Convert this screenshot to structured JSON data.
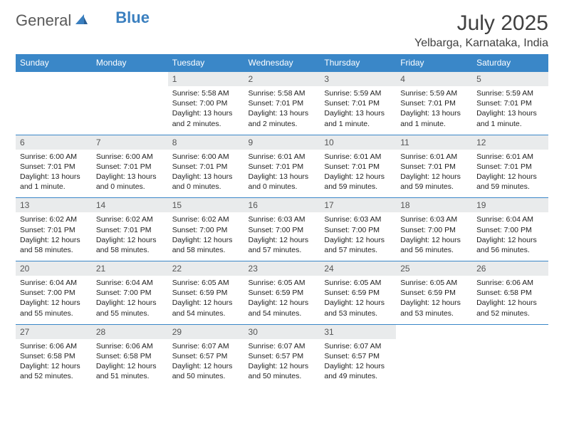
{
  "logo": {
    "text1": "General",
    "text2": "Blue"
  },
  "title": "July 2025",
  "location": "Yelbarga, Karnataka, India",
  "colors": {
    "header_bg": "#3a87c8",
    "header_text": "#ffffff",
    "daynum_bg": "#e9ebec",
    "row_border": "#3a87c8",
    "logo_accent": "#3a7fbf"
  },
  "dayNames": [
    "Sunday",
    "Monday",
    "Tuesday",
    "Wednesday",
    "Thursday",
    "Friday",
    "Saturday"
  ],
  "weeks": [
    [
      {
        "n": "",
        "sr": "",
        "ss": "",
        "dl": ""
      },
      {
        "n": "",
        "sr": "",
        "ss": "",
        "dl": ""
      },
      {
        "n": "1",
        "sr": "Sunrise: 5:58 AM",
        "ss": "Sunset: 7:00 PM",
        "dl": "Daylight: 13 hours and 2 minutes."
      },
      {
        "n": "2",
        "sr": "Sunrise: 5:58 AM",
        "ss": "Sunset: 7:01 PM",
        "dl": "Daylight: 13 hours and 2 minutes."
      },
      {
        "n": "3",
        "sr": "Sunrise: 5:59 AM",
        "ss": "Sunset: 7:01 PM",
        "dl": "Daylight: 13 hours and 1 minute."
      },
      {
        "n": "4",
        "sr": "Sunrise: 5:59 AM",
        "ss": "Sunset: 7:01 PM",
        "dl": "Daylight: 13 hours and 1 minute."
      },
      {
        "n": "5",
        "sr": "Sunrise: 5:59 AM",
        "ss": "Sunset: 7:01 PM",
        "dl": "Daylight: 13 hours and 1 minute."
      }
    ],
    [
      {
        "n": "6",
        "sr": "Sunrise: 6:00 AM",
        "ss": "Sunset: 7:01 PM",
        "dl": "Daylight: 13 hours and 1 minute."
      },
      {
        "n": "7",
        "sr": "Sunrise: 6:00 AM",
        "ss": "Sunset: 7:01 PM",
        "dl": "Daylight: 13 hours and 0 minutes."
      },
      {
        "n": "8",
        "sr": "Sunrise: 6:00 AM",
        "ss": "Sunset: 7:01 PM",
        "dl": "Daylight: 13 hours and 0 minutes."
      },
      {
        "n": "9",
        "sr": "Sunrise: 6:01 AM",
        "ss": "Sunset: 7:01 PM",
        "dl": "Daylight: 13 hours and 0 minutes."
      },
      {
        "n": "10",
        "sr": "Sunrise: 6:01 AM",
        "ss": "Sunset: 7:01 PM",
        "dl": "Daylight: 12 hours and 59 minutes."
      },
      {
        "n": "11",
        "sr": "Sunrise: 6:01 AM",
        "ss": "Sunset: 7:01 PM",
        "dl": "Daylight: 12 hours and 59 minutes."
      },
      {
        "n": "12",
        "sr": "Sunrise: 6:01 AM",
        "ss": "Sunset: 7:01 PM",
        "dl": "Daylight: 12 hours and 59 minutes."
      }
    ],
    [
      {
        "n": "13",
        "sr": "Sunrise: 6:02 AM",
        "ss": "Sunset: 7:01 PM",
        "dl": "Daylight: 12 hours and 58 minutes."
      },
      {
        "n": "14",
        "sr": "Sunrise: 6:02 AM",
        "ss": "Sunset: 7:01 PM",
        "dl": "Daylight: 12 hours and 58 minutes."
      },
      {
        "n": "15",
        "sr": "Sunrise: 6:02 AM",
        "ss": "Sunset: 7:00 PM",
        "dl": "Daylight: 12 hours and 58 minutes."
      },
      {
        "n": "16",
        "sr": "Sunrise: 6:03 AM",
        "ss": "Sunset: 7:00 PM",
        "dl": "Daylight: 12 hours and 57 minutes."
      },
      {
        "n": "17",
        "sr": "Sunrise: 6:03 AM",
        "ss": "Sunset: 7:00 PM",
        "dl": "Daylight: 12 hours and 57 minutes."
      },
      {
        "n": "18",
        "sr": "Sunrise: 6:03 AM",
        "ss": "Sunset: 7:00 PM",
        "dl": "Daylight: 12 hours and 56 minutes."
      },
      {
        "n": "19",
        "sr": "Sunrise: 6:04 AM",
        "ss": "Sunset: 7:00 PM",
        "dl": "Daylight: 12 hours and 56 minutes."
      }
    ],
    [
      {
        "n": "20",
        "sr": "Sunrise: 6:04 AM",
        "ss": "Sunset: 7:00 PM",
        "dl": "Daylight: 12 hours and 55 minutes."
      },
      {
        "n": "21",
        "sr": "Sunrise: 6:04 AM",
        "ss": "Sunset: 7:00 PM",
        "dl": "Daylight: 12 hours and 55 minutes."
      },
      {
        "n": "22",
        "sr": "Sunrise: 6:05 AM",
        "ss": "Sunset: 6:59 PM",
        "dl": "Daylight: 12 hours and 54 minutes."
      },
      {
        "n": "23",
        "sr": "Sunrise: 6:05 AM",
        "ss": "Sunset: 6:59 PM",
        "dl": "Daylight: 12 hours and 54 minutes."
      },
      {
        "n": "24",
        "sr": "Sunrise: 6:05 AM",
        "ss": "Sunset: 6:59 PM",
        "dl": "Daylight: 12 hours and 53 minutes."
      },
      {
        "n": "25",
        "sr": "Sunrise: 6:05 AM",
        "ss": "Sunset: 6:59 PM",
        "dl": "Daylight: 12 hours and 53 minutes."
      },
      {
        "n": "26",
        "sr": "Sunrise: 6:06 AM",
        "ss": "Sunset: 6:58 PM",
        "dl": "Daylight: 12 hours and 52 minutes."
      }
    ],
    [
      {
        "n": "27",
        "sr": "Sunrise: 6:06 AM",
        "ss": "Sunset: 6:58 PM",
        "dl": "Daylight: 12 hours and 52 minutes."
      },
      {
        "n": "28",
        "sr": "Sunrise: 6:06 AM",
        "ss": "Sunset: 6:58 PM",
        "dl": "Daylight: 12 hours and 51 minutes."
      },
      {
        "n": "29",
        "sr": "Sunrise: 6:07 AM",
        "ss": "Sunset: 6:57 PM",
        "dl": "Daylight: 12 hours and 50 minutes."
      },
      {
        "n": "30",
        "sr": "Sunrise: 6:07 AM",
        "ss": "Sunset: 6:57 PM",
        "dl": "Daylight: 12 hours and 50 minutes."
      },
      {
        "n": "31",
        "sr": "Sunrise: 6:07 AM",
        "ss": "Sunset: 6:57 PM",
        "dl": "Daylight: 12 hours and 49 minutes."
      },
      {
        "n": "",
        "sr": "",
        "ss": "",
        "dl": ""
      },
      {
        "n": "",
        "sr": "",
        "ss": "",
        "dl": ""
      }
    ]
  ]
}
